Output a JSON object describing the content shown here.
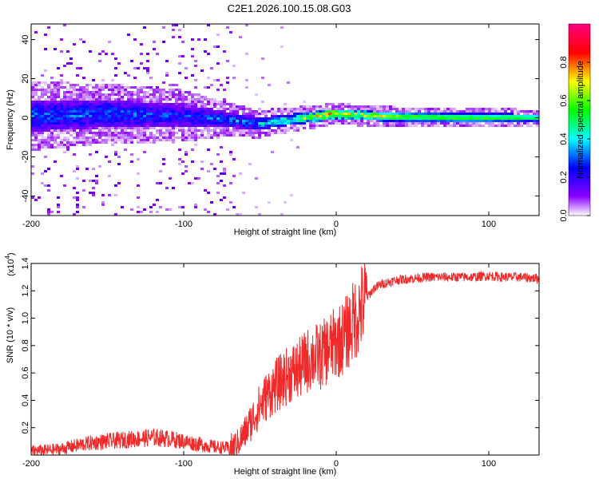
{
  "title": "C2E1.2026.100.15.08.G03",
  "chart_data": [
    {
      "type": "heatmap",
      "panel": "spectrogram",
      "xlabel": "Height of straight line (km)",
      "ylabel": "Frequency (Hz)",
      "xlim": [
        -200,
        133
      ],
      "ylim": [
        -50,
        48
      ],
      "xticks": [
        -200,
        -100,
        0,
        100
      ],
      "xtick_labels": [
        "-200",
        "-100",
        "0",
        "100"
      ],
      "yticks": [
        -40,
        -20,
        0,
        20,
        40
      ],
      "ytick_labels": [
        "-40",
        "-20",
        "0",
        "20",
        "40"
      ],
      "colorbar": {
        "label": "Normalized spectral amplitude",
        "range": [
          0,
          1
        ],
        "ticks": [
          0.0,
          0.2,
          0.4,
          0.6,
          0.8
        ],
        "tick_labels": [
          "0.0",
          "0.2",
          "0.4",
          "0.6",
          "0.8"
        ],
        "colors": [
          "#ffffff",
          "#8a00ff",
          "#0000ff",
          "#00ffff",
          "#00ff00",
          "#ffff00",
          "#ff0000",
          "#ff0080"
        ]
      },
      "description_points": {
        "center_frequency_hz": [
          [
            -200,
            1
          ],
          [
            -150,
            2
          ],
          [
            -100,
            1
          ],
          [
            -70,
            -1
          ],
          [
            -50,
            -3
          ],
          [
            -30,
            -1
          ],
          [
            -10,
            1
          ],
          [
            0,
            2
          ],
          [
            20,
            1
          ],
          [
            40,
            0.5
          ],
          [
            80,
            0
          ],
          [
            133,
            0
          ]
        ],
        "band_halfwidth_hz": [
          [
            -200,
            8
          ],
          [
            -150,
            7
          ],
          [
            -100,
            6
          ],
          [
            -70,
            4
          ],
          [
            -40,
            3
          ],
          [
            0,
            2.5
          ],
          [
            133,
            2
          ]
        ],
        "peak_amplitude": [
          [
            -200,
            0.35
          ],
          [
            -150,
            0.35
          ],
          [
            -100,
            0.3
          ],
          [
            -70,
            0.35
          ],
          [
            -40,
            0.45
          ],
          [
            -10,
            0.75
          ],
          [
            0,
            0.8
          ],
          [
            20,
            0.7
          ],
          [
            60,
            0.65
          ],
          [
            100,
            0.65
          ],
          [
            133,
            0.6
          ]
        ]
      }
    },
    {
      "type": "line",
      "panel": "snr",
      "xlabel": "Height of straight line (km)",
      "ylabel": "SNR (10 * v/v)",
      "y_multiplier_label": "(x10",
      "y_multiplier_exp": "4",
      "y_multiplier_close": ")",
      "xlim": [
        -200,
        133
      ],
      "ylim": [
        0,
        1.4
      ],
      "xticks": [
        -200,
        -100,
        0,
        100
      ],
      "xtick_labels": [
        "-200",
        "-100",
        "0",
        "100"
      ],
      "yticks": [
        0.2,
        0.4,
        0.6,
        0.8,
        1.0,
        1.2,
        1.4
      ],
      "ytick_labels": [
        "0.2",
        "0.4",
        "0.6",
        "0.8",
        "1.0",
        "1.2",
        "1.4"
      ],
      "color": "#ee2a2a",
      "series": [
        {
          "name": "SNR",
          "x": [
            -200,
            -190,
            -180,
            -170,
            -160,
            -150,
            -140,
            -130,
            -120,
            -110,
            -100,
            -90,
            -80,
            -70,
            -65,
            -60,
            -55,
            -50,
            -45,
            -40,
            -35,
            -30,
            -25,
            -20,
            -15,
            -10,
            -5,
            0,
            5,
            10,
            15,
            20,
            25,
            30,
            40,
            50,
            60,
            70,
            80,
            90,
            100,
            110,
            120,
            133
          ],
          "values": [
            0.03,
            0.035,
            0.045,
            0.07,
            0.09,
            0.1,
            0.11,
            0.12,
            0.13,
            0.12,
            0.1,
            0.08,
            0.06,
            0.05,
            0.08,
            0.16,
            0.26,
            0.36,
            0.44,
            0.5,
            0.55,
            0.6,
            0.62,
            0.68,
            0.72,
            0.72,
            0.78,
            0.82,
            0.86,
            0.95,
            1.05,
            1.15,
            1.22,
            1.25,
            1.28,
            1.29,
            1.3,
            1.3,
            1.3,
            1.3,
            1.31,
            1.3,
            1.3,
            1.29
          ]
        }
      ]
    }
  ]
}
